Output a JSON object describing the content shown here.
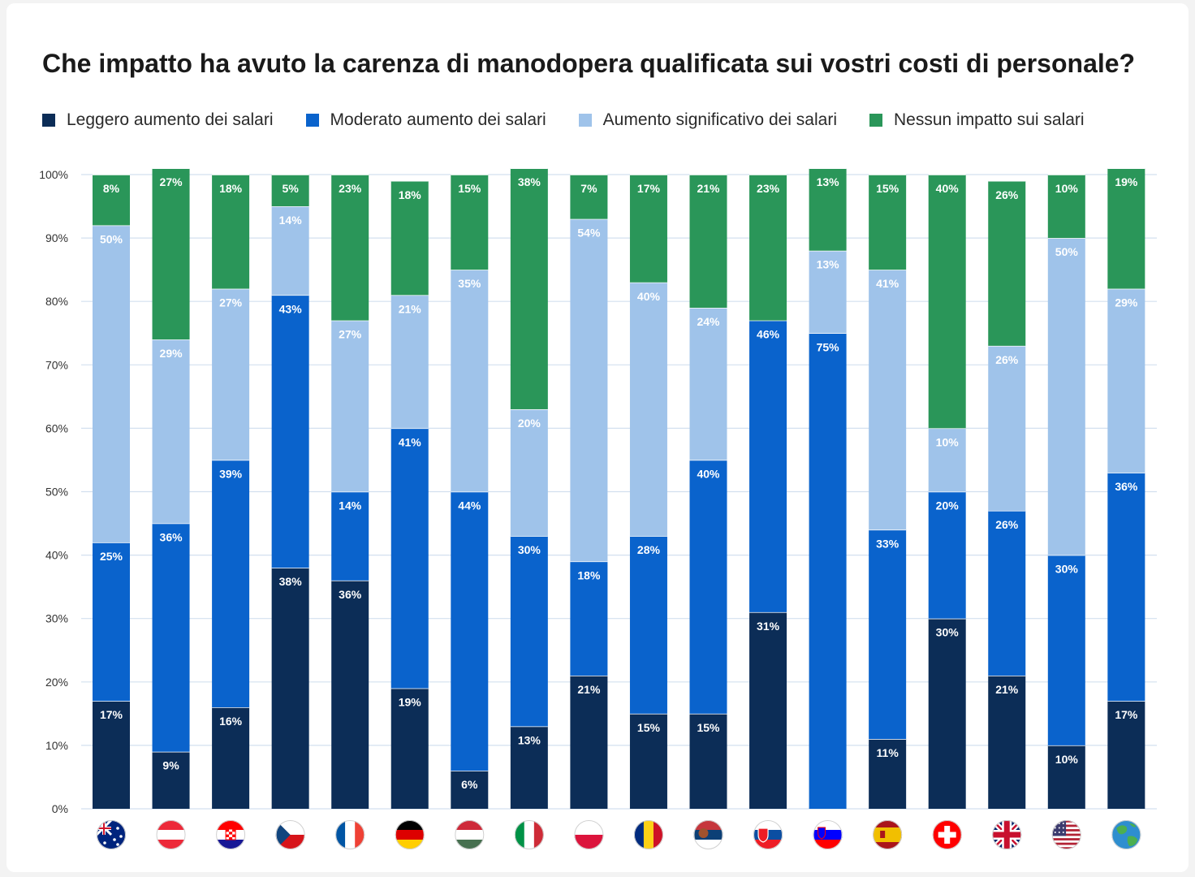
{
  "chart_data": {
    "type": "bar",
    "stacked": true,
    "title": "Che impatto ha avuto la carenza di manodopera qualificata sui vostri costi di personale?",
    "xlabel": "",
    "ylabel": "",
    "ylim": [
      0,
      100
    ],
    "y_ticks": [
      "0%",
      "10%",
      "20%",
      "30%",
      "40%",
      "50%",
      "60%",
      "70%",
      "80%",
      "90%",
      "100%"
    ],
    "grid": true,
    "legend_position": "top-left",
    "categories": [
      "Australia",
      "Austria",
      "Croazia",
      "Repubblica Ceca",
      "Francia",
      "Germania",
      "Ungheria",
      "Italia",
      "Polonia",
      "Romania",
      "Serbia",
      "Slovacchia",
      "Slovenia",
      "Spagna",
      "Svizzera",
      "Regno Unito",
      "Stati Uniti",
      "Globale"
    ],
    "category_icons": [
      "flag-australia-icon",
      "flag-austria-icon",
      "flag-croatia-icon",
      "flag-czech-republic-icon",
      "flag-france-icon",
      "flag-germany-icon",
      "flag-hungary-icon",
      "flag-italy-icon",
      "flag-poland-icon",
      "flag-romania-icon",
      "flag-serbia-icon",
      "flag-slovakia-icon",
      "flag-slovenia-icon",
      "flag-spain-icon",
      "flag-switzerland-icon",
      "flag-united-kingdom-icon",
      "flag-united-states-icon",
      "globe-icon"
    ],
    "series": [
      {
        "name": "Leggero aumento dei salari",
        "color": "#0c2d57",
        "values": [
          17,
          9,
          16,
          38,
          36,
          19,
          6,
          13,
          21,
          15,
          15,
          31,
          0,
          11,
          30,
          21,
          10,
          17
        ]
      },
      {
        "name": "Moderato aumento dei salari",
        "color": "#0a63cc",
        "values": [
          25,
          36,
          39,
          43,
          14,
          41,
          44,
          30,
          18,
          28,
          40,
          46,
          75,
          33,
          20,
          26,
          30,
          36
        ]
      },
      {
        "name": "Aumento significativo dei salari",
        "color": "#9fc3ea",
        "values": [
          50,
          29,
          27,
          14,
          27,
          21,
          35,
          20,
          54,
          40,
          24,
          0,
          13,
          41,
          10,
          26,
          50,
          29
        ]
      },
      {
        "name": "Nessun impatto sui salari",
        "color": "#2a9659",
        "values": [
          8,
          27,
          18,
          5,
          23,
          18,
          15,
          38,
          7,
          17,
          21,
          23,
          13,
          15,
          40,
          26,
          10,
          19
        ]
      }
    ]
  }
}
